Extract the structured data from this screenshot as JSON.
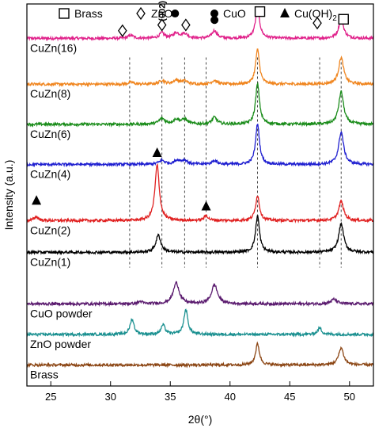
{
  "chart_data": {
    "type": "line",
    "xlabel": "2θ(°)",
    "ylabel": "Intensity (a.u.)",
    "xlim": [
      23,
      52
    ],
    "x_ticks": [
      25,
      30,
      35,
      40,
      45,
      50
    ],
    "legend": [
      {
        "name": "Brass",
        "symbol": "square"
      },
      {
        "name": "ZnO",
        "symbol": "diamond"
      },
      {
        "name": "CuO",
        "symbol": "circle"
      },
      {
        "name": "Cu(OH)",
        "sub": "2",
        "symbol": "triangle"
      }
    ],
    "reference_lines": [
      31.6,
      34.3,
      36.2,
      38.0,
      42.3,
      47.5,
      49.3
    ],
    "miller_label": {
      "text": "(002)",
      "x": 34.3
    },
    "series": [
      {
        "name": "CuZn(16)",
        "color": "#e0218a",
        "baseline": 91.0,
        "peaks": [
          [
            31.7,
            0.8,
            0.25
          ],
          [
            34.3,
            1.4,
            0.25
          ],
          [
            35.5,
            1.3,
            0.3
          ],
          [
            36.2,
            1.2,
            0.3
          ],
          [
            38.7,
            2.0,
            0.25
          ],
          [
            42.3,
            7.5,
            0.22
          ],
          [
            49.3,
            5.0,
            0.25
          ]
        ]
      },
      {
        "name": "CuZn(8)",
        "color": "#f0851e",
        "baseline": 79.0,
        "peaks": [
          [
            31.7,
            0.5,
            0.25
          ],
          [
            34.3,
            1.0,
            0.25
          ],
          [
            35.5,
            1.0,
            0.3
          ],
          [
            36.2,
            0.8,
            0.3
          ],
          [
            38.7,
            1.0,
            0.25
          ],
          [
            42.3,
            9.0,
            0.2
          ],
          [
            49.3,
            7.0,
            0.25
          ]
        ]
      },
      {
        "name": "CuZn(6)",
        "color": "#1a8c1a",
        "baseline": 68.5,
        "peaks": [
          [
            34.3,
            1.5,
            0.3
          ],
          [
            35.5,
            1.2,
            0.3
          ],
          [
            36.2,
            1.2,
            0.3
          ],
          [
            38.7,
            1.8,
            0.25
          ],
          [
            42.3,
            10.5,
            0.2
          ],
          [
            49.3,
            8.5,
            0.25
          ]
        ]
      },
      {
        "name": "CuZn(4)",
        "color": "#1f1fd0",
        "baseline": 58.0,
        "peaks": [
          [
            34.3,
            1.0,
            0.3
          ],
          [
            35.6,
            1.0,
            0.3
          ],
          [
            36.2,
            1.0,
            0.3
          ],
          [
            38.7,
            1.0,
            0.25
          ],
          [
            42.3,
            10.5,
            0.2
          ],
          [
            49.3,
            8.5,
            0.25
          ]
        ]
      },
      {
        "name": "CuZn(2)",
        "color": "#e02020",
        "baseline": 43.3,
        "peaks": [
          [
            23.8,
            1.0,
            0.2
          ],
          [
            33.9,
            14.5,
            0.22
          ],
          [
            38.0,
            1.3,
            0.2
          ],
          [
            42.3,
            6.5,
            0.2
          ],
          [
            49.3,
            5.0,
            0.25
          ]
        ]
      },
      {
        "name": "CuZn(1)",
        "color": "#000000",
        "baseline": 35.0,
        "peaks": [
          [
            34.0,
            4.5,
            0.25
          ],
          [
            42.3,
            9.5,
            0.2
          ],
          [
            49.3,
            7.5,
            0.25
          ]
        ]
      },
      {
        "name": "CuO powder",
        "color": "#5a1a6e",
        "baseline": 21.5,
        "peaks": [
          [
            32.5,
            0.6,
            0.2
          ],
          [
            35.5,
            5.5,
            0.3
          ],
          [
            38.7,
            5.0,
            0.3
          ],
          [
            48.7,
            1.2,
            0.3
          ]
        ]
      },
      {
        "name": "ZnO powder",
        "color": "#1a9090",
        "baseline": 13.5,
        "peaks": [
          [
            31.8,
            4.0,
            0.2
          ],
          [
            34.4,
            2.5,
            0.2
          ],
          [
            36.3,
            6.5,
            0.2
          ],
          [
            47.5,
            1.7,
            0.2
          ]
        ]
      },
      {
        "name": "Brass",
        "color": "#8b4513",
        "baseline": 5.5,
        "peaks": [
          [
            42.3,
            5.5,
            0.2
          ],
          [
            49.3,
            4.5,
            0.25
          ]
        ]
      }
    ],
    "markers": [
      {
        "symbol": "square",
        "x": 42.5,
        "y": 98.0
      },
      {
        "symbol": "square",
        "x": 49.5,
        "y": 96.0
      },
      {
        "symbol": "diamond",
        "x": 31.0,
        "y": 93.0
      },
      {
        "symbol": "diamond",
        "x": 34.3,
        "y": 94.5
      },
      {
        "symbol": "diamond",
        "x": 36.3,
        "y": 94.5
      },
      {
        "symbol": "diamond",
        "x": 47.3,
        "y": 95.0
      },
      {
        "symbol": "circle",
        "x": 35.4,
        "y": 97.5
      },
      {
        "symbol": "circle",
        "x": 38.7,
        "y": 95.8
      },
      {
        "symbol": "triangle",
        "x": 23.8,
        "y": 48.5
      },
      {
        "symbol": "triangle",
        "x": 33.9,
        "y": 61.0
      },
      {
        "symbol": "triangle",
        "x": 38.0,
        "y": 47.0
      }
    ]
  }
}
